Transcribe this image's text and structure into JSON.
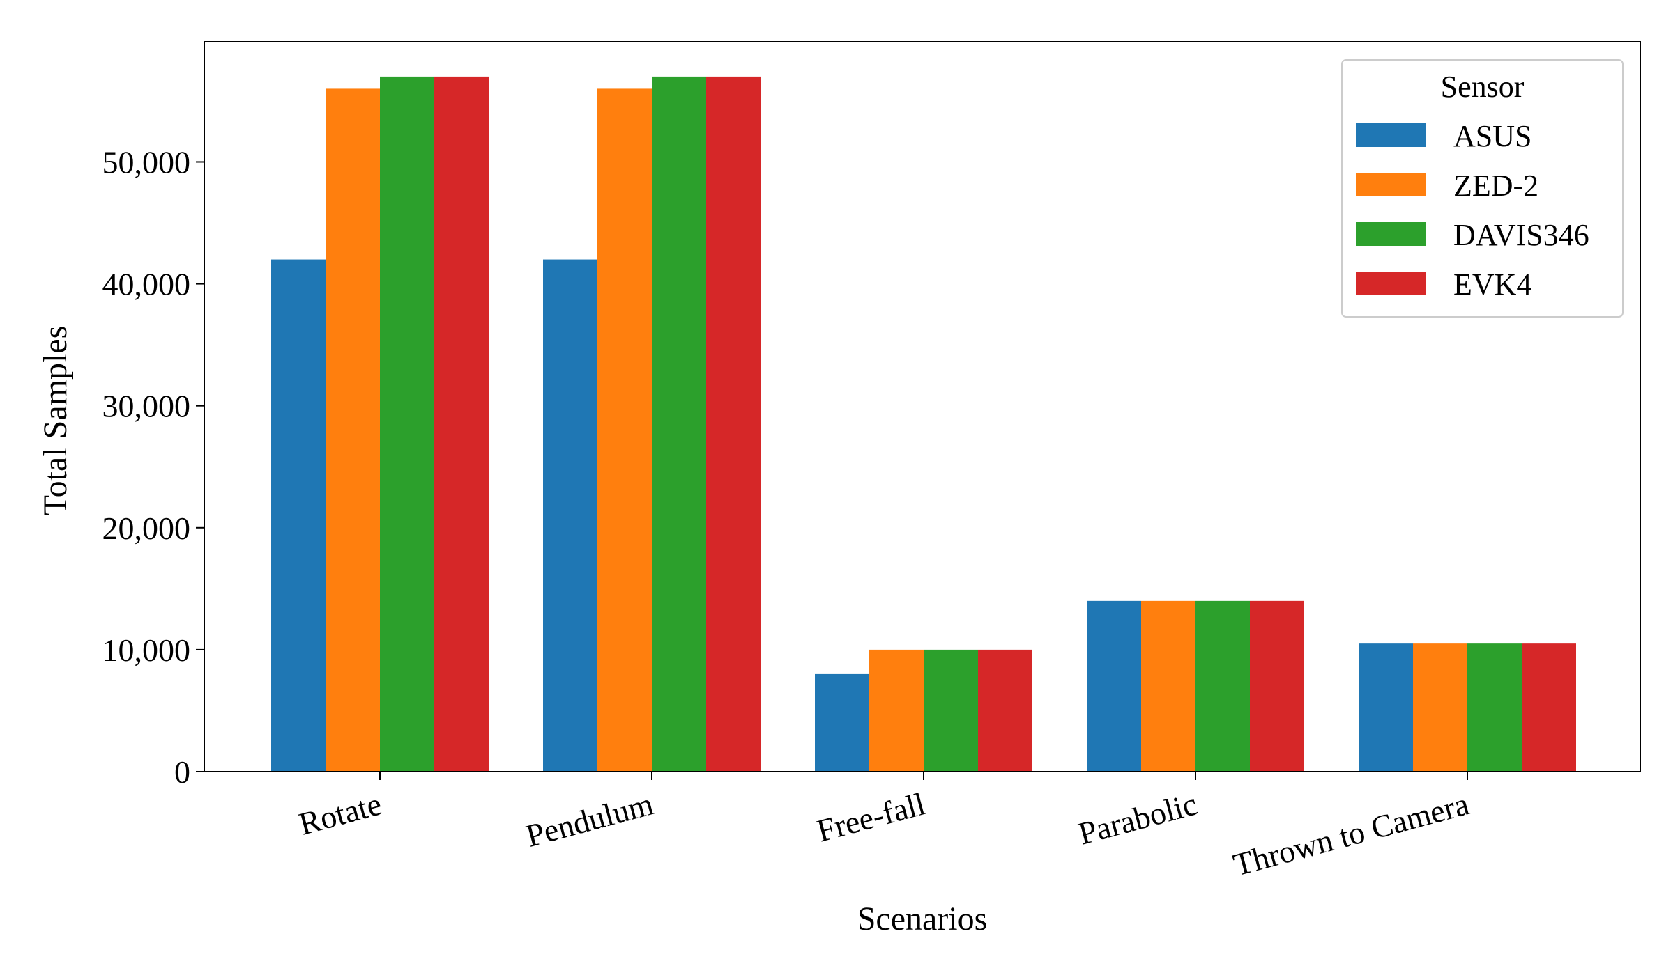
{
  "chart_data": {
    "type": "bar",
    "title": "",
    "xlabel": "Scenarios",
    "ylabel": "Total Samples",
    "categories": [
      "Rotate",
      "Pendulum",
      "Free-fall",
      "Parabolic",
      "Thrown to Camera"
    ],
    "series": [
      {
        "name": "ASUS",
        "color": "#1f77b4",
        "values": [
          42000,
          42000,
          8000,
          14000,
          10500
        ]
      },
      {
        "name": "ZED-2",
        "color": "#ff7f0e",
        "values": [
          56000,
          56000,
          10000,
          14000,
          10500
        ]
      },
      {
        "name": "DAVIS346",
        "color": "#2ca02c",
        "values": [
          57000,
          57000,
          10000,
          14000,
          10500
        ]
      },
      {
        "name": "EVK4",
        "color": "#d62728",
        "values": [
          57000,
          57000,
          10000,
          14000,
          10500
        ]
      }
    ],
    "ylim": [
      0,
      59850
    ],
    "yticks": [
      0,
      10000,
      20000,
      30000,
      40000,
      50000
    ],
    "ytick_labels": [
      "0",
      "10,000",
      "20,000",
      "30,000",
      "40,000",
      "50,000"
    ],
    "legend": {
      "title": "Sensor",
      "placement": "top-right"
    },
    "grid": false
  }
}
